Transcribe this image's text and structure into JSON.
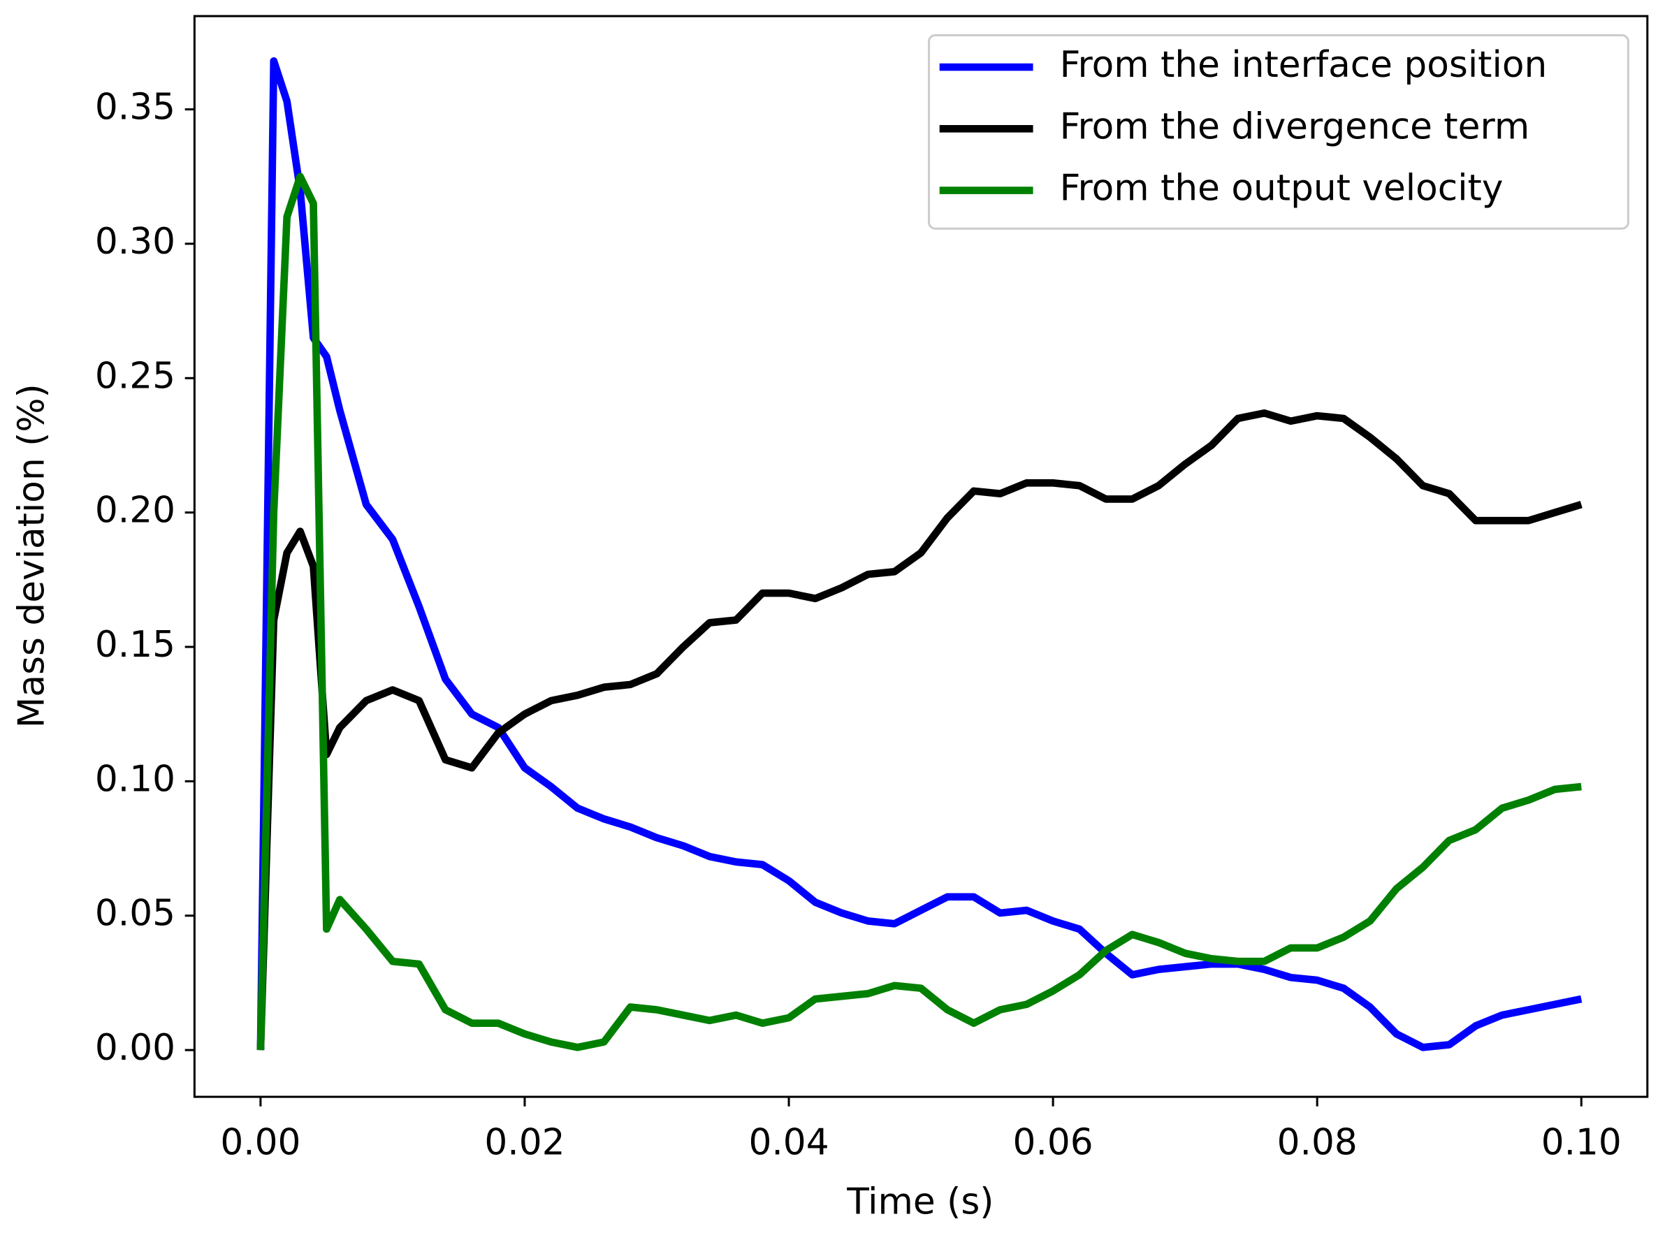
{
  "chart_data": {
    "type": "line",
    "xlabel": "Time (s)",
    "ylabel": "Mass deviation (%)",
    "x": [
      0,
      0.001,
      0.002,
      0.003,
      0.004,
      0.005,
      0.006,
      0.008,
      0.01,
      0.012,
      0.014,
      0.016,
      0.018,
      0.02,
      0.022,
      0.024,
      0.026,
      0.028,
      0.03,
      0.032,
      0.034,
      0.036,
      0.038,
      0.04,
      0.042,
      0.044,
      0.046,
      0.048,
      0.05,
      0.052,
      0.054,
      0.056,
      0.058,
      0.06,
      0.062,
      0.064,
      0.066,
      0.068,
      0.07,
      0.072,
      0.074,
      0.076,
      0.078,
      0.08,
      0.082,
      0.084,
      0.086,
      0.088,
      0.09,
      0.092,
      0.094,
      0.096,
      0.098,
      0.1
    ],
    "series": [
      {
        "name": "From the interface position",
        "color": "#0000ff",
        "values": [
          0,
          0.368,
          0.353,
          0.32,
          0.265,
          0.258,
          0.238,
          0.203,
          0.19,
          0.165,
          0.138,
          0.125,
          0.12,
          0.105,
          0.098,
          0.09,
          0.086,
          0.083,
          0.079,
          0.076,
          0.072,
          0.07,
          0.069,
          0.063,
          0.055,
          0.051,
          0.048,
          0.047,
          0.052,
          0.057,
          0.057,
          0.051,
          0.052,
          0.048,
          0.045,
          0.036,
          0.028,
          0.03,
          0.031,
          0.032,
          0.032,
          0.03,
          0.027,
          0.026,
          0.023,
          0.016,
          0.006,
          0.001,
          0.002,
          0.009,
          0.013,
          0.015,
          0.017,
          0.019
        ]
      },
      {
        "name": "From the divergence term",
        "color": "#000000",
        "values": [
          0,
          0.16,
          0.185,
          0.193,
          0.18,
          0.11,
          0.12,
          0.13,
          0.134,
          0.13,
          0.108,
          0.105,
          0.118,
          0.125,
          0.13,
          0.132,
          0.135,
          0.136,
          0.14,
          0.15,
          0.159,
          0.16,
          0.17,
          0.17,
          0.168,
          0.172,
          0.177,
          0.178,
          0.185,
          0.198,
          0.208,
          0.207,
          0.211,
          0.211,
          0.21,
          0.205,
          0.205,
          0.21,
          0.218,
          0.225,
          0.235,
          0.237,
          0.234,
          0.236,
          0.235,
          0.228,
          0.22,
          0.21,
          0.207,
          0.197,
          0.197,
          0.197,
          0.2,
          0.203
        ]
      },
      {
        "name": "From the output velocity",
        "color": "#008000",
        "values": [
          0,
          0.2,
          0.31,
          0.325,
          0.315,
          0.045,
          0.056,
          0.045,
          0.033,
          0.032,
          0.015,
          0.01,
          0.01,
          0.006,
          0.003,
          0.001,
          0.003,
          0.016,
          0.015,
          0.013,
          0.011,
          0.013,
          0.01,
          0.012,
          0.019,
          0.02,
          0.021,
          0.024,
          0.023,
          0.015,
          0.01,
          0.015,
          0.017,
          0.022,
          0.028,
          0.037,
          0.043,
          0.04,
          0.036,
          0.034,
          0.033,
          0.033,
          0.038,
          0.038,
          0.042,
          0.048,
          0.06,
          0.068,
          0.078,
          0.082,
          0.09,
          0.093,
          0.097,
          0.098
        ]
      }
    ],
    "xlim": [
      -0.005,
      0.105
    ],
    "ylim": [
      -0.0174,
      0.3847
    ],
    "xticks": [
      {
        "value": 0,
        "label": "0.00"
      },
      {
        "value": 0.02,
        "label": "0.02"
      },
      {
        "value": 0.04,
        "label": "0.04"
      },
      {
        "value": 0.06,
        "label": "0.06"
      },
      {
        "value": 0.08,
        "label": "0.08"
      },
      {
        "value": 0.1,
        "label": "0.10"
      }
    ],
    "yticks": [
      {
        "value": 0,
        "label": "0.00"
      },
      {
        "value": 0.05,
        "label": "0.05"
      },
      {
        "value": 0.1,
        "label": "0.10"
      },
      {
        "value": 0.15,
        "label": "0.15"
      },
      {
        "value": 0.2,
        "label": "0.20"
      },
      {
        "value": 0.25,
        "label": "0.25"
      },
      {
        "value": 0.3,
        "label": "0.30"
      },
      {
        "value": 0.35,
        "label": "0.35"
      }
    ],
    "legend": "upper right"
  }
}
